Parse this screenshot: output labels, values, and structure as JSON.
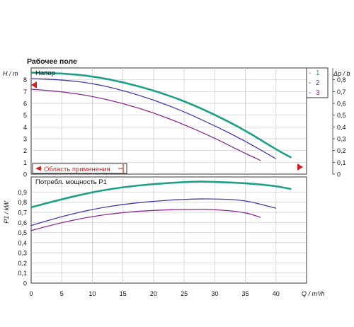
{
  "chart_data": [
    {
      "type": "line",
      "title": "Рабочее поле",
      "panel_label": "Напор",
      "ylabel": "H / m",
      "ylabel_right": "Δp / b",
      "xlim": [
        0,
        45
      ],
      "ylim": [
        0,
        9
      ],
      "ylim_right": [
        0,
        0.9
      ],
      "y_ticks": [
        0,
        1,
        2,
        3,
        4,
        5,
        6,
        7,
        8
      ],
      "y_right_ticks": [
        "0",
        "0,1",
        "0,2",
        "0,3",
        "0,4",
        "0,5",
        "0,6",
        "0,7",
        "0,8"
      ],
      "grid": true,
      "legend_position": "top-right",
      "application_range_label": "Область применения",
      "series": [
        {
          "name": "1",
          "color": "#1f9e8a",
          "x": [
            0,
            5,
            10,
            15,
            20,
            25,
            30,
            35,
            40,
            42.5
          ],
          "y": [
            8.6,
            8.55,
            8.3,
            7.8,
            7.1,
            6.2,
            5.05,
            3.7,
            2.1,
            1.4
          ]
        },
        {
          "name": "2",
          "color": "#4d3aa3",
          "x": [
            0,
            5,
            10,
            15,
            20,
            25,
            30,
            35,
            40
          ],
          "y": [
            8.1,
            8.0,
            7.7,
            7.1,
            6.3,
            5.3,
            4.1,
            2.8,
            1.3
          ]
        },
        {
          "name": "3",
          "color": "#8a2a8e",
          "x": [
            0,
            5,
            10,
            15,
            20,
            25,
            30,
            34,
            37.5
          ],
          "y": [
            7.2,
            7.0,
            6.6,
            6.0,
            5.2,
            4.2,
            3.05,
            2.0,
            1.15
          ]
        }
      ]
    },
    {
      "type": "line",
      "panel_label": "Потребл. мощность P1",
      "ylabel": "P1 / kW",
      "xlabel": "Q / m³/h",
      "xlim": [
        0,
        45
      ],
      "ylim": [
        0,
        1.05
      ],
      "y_ticks": [
        "0",
        "0,1",
        "0,2",
        "0,3",
        "0,4",
        "0,5",
        "0,6",
        "0,7",
        "0,8",
        "0,9"
      ],
      "x_ticks": [
        0,
        5,
        10,
        15,
        20,
        25,
        30,
        35,
        40
      ],
      "grid": true,
      "series": [
        {
          "name": "1",
          "color": "#1f9e8a",
          "x": [
            0,
            5,
            10,
            15,
            20,
            25,
            28,
            30,
            35,
            40,
            42.5
          ],
          "y": [
            0.75,
            0.83,
            0.9,
            0.95,
            0.98,
            1.0,
            1.005,
            1.0,
            0.99,
            0.96,
            0.93
          ]
        },
        {
          "name": "2",
          "color": "#4d3aa3",
          "x": [
            0,
            5,
            10,
            15,
            20,
            25,
            30,
            35,
            40
          ],
          "y": [
            0.57,
            0.66,
            0.73,
            0.78,
            0.81,
            0.83,
            0.835,
            0.82,
            0.74
          ]
        },
        {
          "name": "3",
          "color": "#8a2a8e",
          "x": [
            0,
            5,
            10,
            15,
            20,
            25,
            30,
            35,
            37.5
          ],
          "y": [
            0.52,
            0.6,
            0.66,
            0.7,
            0.72,
            0.73,
            0.73,
            0.7,
            0.65
          ]
        }
      ]
    }
  ]
}
